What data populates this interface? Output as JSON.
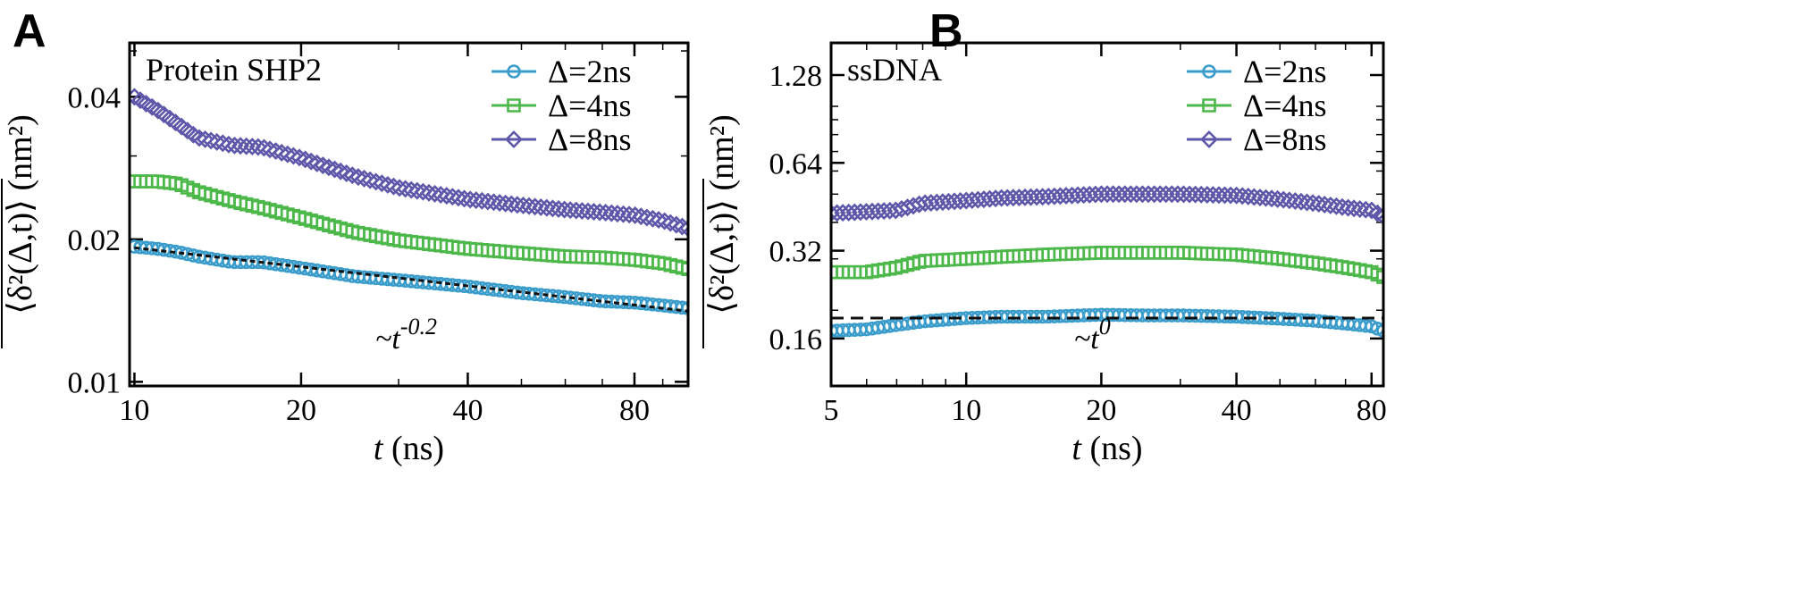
{
  "figure": {
    "panels": [
      "A",
      "B"
    ]
  },
  "chart_data": [
    {
      "panel_label": "A",
      "type": "scatter",
      "title": "Protein SHP2",
      "xscale": "log",
      "yscale": "log",
      "xlim": [
        9.8,
        100
      ],
      "ylim": [
        0.0098,
        0.052
      ],
      "xticks": [
        10,
        20,
        40,
        80
      ],
      "xtick_labels": [
        "10",
        "20",
        "40",
        "80"
      ],
      "yticks": [
        0.01,
        0.02,
        0.04
      ],
      "ytick_labels": [
        "0.01",
        "0.02",
        "0.04"
      ],
      "xlabel": "t (ns)",
      "ylabel": "⟨δ²(Δ,t)⟩ (nm²)",
      "legend_position": "top-right",
      "series": [
        {
          "name": "Δ=2ns",
          "marker": "circle",
          "color": "#3a9ccb",
          "x": [
            10,
            11,
            12,
            13,
            15,
            17,
            20,
            25,
            30,
            40,
            50,
            60,
            70,
            80,
            90,
            100
          ],
          "y": [
            0.0193,
            0.0191,
            0.0188,
            0.0184,
            0.0179,
            0.0179,
            0.0174,
            0.0167,
            0.0164,
            0.0159,
            0.0154,
            0.0151,
            0.0148,
            0.0147,
            0.0145,
            0.0143
          ]
        },
        {
          "name": "Δ=4ns",
          "marker": "square",
          "color": "#4cb84a",
          "x": [
            10,
            11,
            12,
            13,
            15,
            17,
            20,
            25,
            30,
            40,
            50,
            60,
            70,
            80,
            90,
            100
          ],
          "y": [
            0.0265,
            0.0265,
            0.0262,
            0.0252,
            0.0241,
            0.0233,
            0.0222,
            0.0207,
            0.0199,
            0.0191,
            0.0187,
            0.0184,
            0.0183,
            0.0181,
            0.0178,
            0.0173
          ]
        },
        {
          "name": "Δ=8ns",
          "marker": "diamond",
          "color": "#5e57aa",
          "x": [
            10,
            11,
            12,
            13,
            15,
            17,
            20,
            25,
            30,
            40,
            50,
            60,
            70,
            80,
            90,
            100
          ],
          "y": [
            0.04,
            0.0375,
            0.035,
            0.0328,
            0.0316,
            0.0313,
            0.0297,
            0.0272,
            0.0257,
            0.0243,
            0.0236,
            0.0231,
            0.0228,
            0.0225,
            0.0219,
            0.0211
          ]
        }
      ],
      "fit_line": {
        "label": "~t",
        "exponent": "-0.2",
        "x": [
          10,
          100
        ],
        "y": [
          0.0192,
          0.0141
        ]
      }
    },
    {
      "panel_label": "B",
      "type": "scatter",
      "title": "ssDNA",
      "xscale": "log",
      "yscale": "log",
      "xlim": [
        5,
        85
      ],
      "ylim": [
        0.11,
        1.65
      ],
      "xticks": [
        5,
        10,
        20,
        40,
        80
      ],
      "xtick_labels": [
        "5",
        "10",
        "20",
        "40",
        "80"
      ],
      "yticks": [
        0.16,
        0.32,
        0.64,
        1.28
      ],
      "ytick_labels": [
        "0.16",
        "0.32",
        "0.64",
        "1.28"
      ],
      "xlabel": "t (ns)",
      "ylabel": "⟨δ²(Δ,t)⟩ (nm²)",
      "legend_position": "top-right",
      "series": [
        {
          "name": "Δ=2ns",
          "marker": "circle",
          "color": "#3a9ccb",
          "x": [
            5,
            6,
            7,
            8,
            10,
            12,
            15,
            20,
            25,
            30,
            40,
            50,
            60,
            70,
            80,
            85
          ],
          "y": [
            0.17,
            0.172,
            0.178,
            0.183,
            0.188,
            0.19,
            0.19,
            0.193,
            0.192,
            0.192,
            0.19,
            0.187,
            0.184,
            0.18,
            0.176,
            0.17
          ]
        },
        {
          "name": "Δ=4ns",
          "marker": "square",
          "color": "#4cb84a",
          "x": [
            5,
            6,
            7,
            8,
            10,
            12,
            15,
            20,
            25,
            30,
            40,
            50,
            60,
            70,
            80,
            85
          ],
          "y": [
            0.27,
            0.27,
            0.28,
            0.295,
            0.3,
            0.305,
            0.31,
            0.315,
            0.315,
            0.315,
            0.31,
            0.3,
            0.29,
            0.28,
            0.27,
            0.26
          ]
        },
        {
          "name": "Δ=8ns",
          "marker": "diamond",
          "color": "#5e57aa",
          "x": [
            5,
            6,
            7,
            8,
            10,
            12,
            15,
            20,
            25,
            30,
            40,
            50,
            60,
            70,
            80,
            85
          ],
          "y": [
            0.43,
            0.435,
            0.44,
            0.465,
            0.475,
            0.485,
            0.49,
            0.5,
            0.5,
            0.5,
            0.495,
            0.48,
            0.465,
            0.45,
            0.44,
            0.42
          ]
        }
      ],
      "fit_line": {
        "label": "~t",
        "exponent": "0",
        "x": [
          5,
          85
        ],
        "y": [
          0.188,
          0.188
        ]
      }
    }
  ]
}
